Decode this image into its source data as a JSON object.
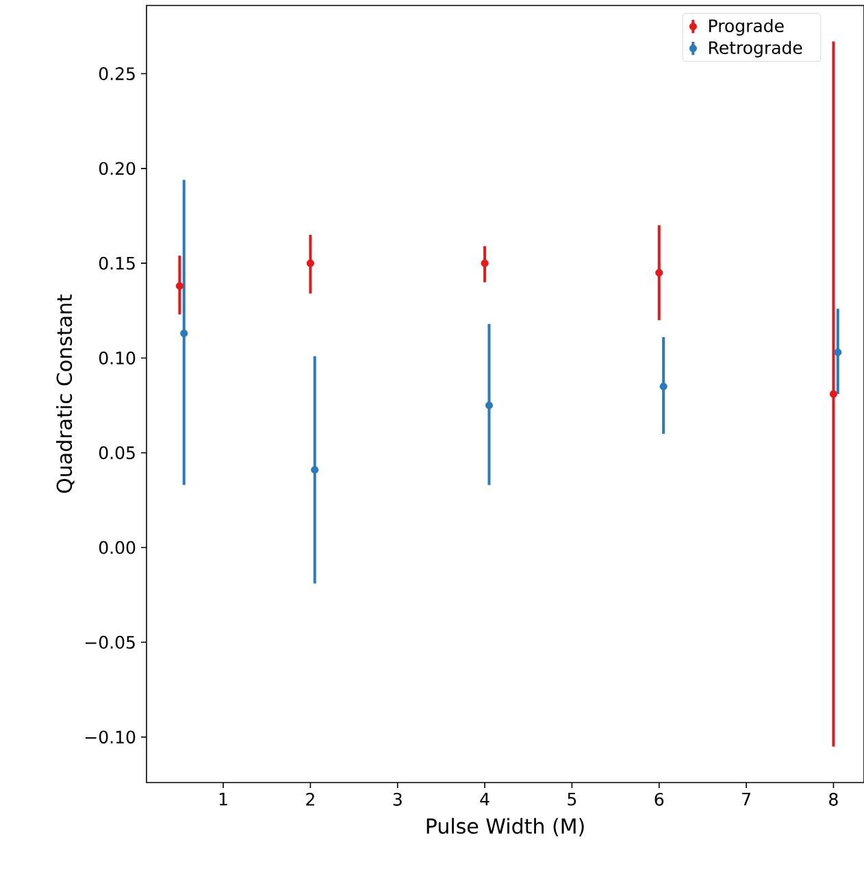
{
  "chart_data": {
    "type": "scatter",
    "xlabel": "Pulse Width (M)",
    "ylabel": "Quadratic Constant",
    "marker": "circle",
    "legend": "top right",
    "xlim": [
      0.12,
      8.35
    ],
    "ylim": [
      -0.124,
      0.286
    ],
    "xticks": [
      1,
      2,
      3,
      4,
      5,
      6,
      7,
      8
    ],
    "yticks": [
      {
        "value": -0.1,
        "label": "−0.10"
      },
      {
        "value": -0.05,
        "label": "−0.05"
      },
      {
        "value": 0,
        "label": "0.00"
      },
      {
        "value": 0.05,
        "label": "0.05"
      },
      {
        "value": 0.1,
        "label": "0.10"
      },
      {
        "value": 0.15,
        "label": "0.15"
      },
      {
        "value": 0.2,
        "label": "0.20"
      },
      {
        "value": 0.25,
        "label": "0.25"
      }
    ],
    "series": [
      {
        "name": "Prograde",
        "color": "#e31a1c",
        "x": [
          0.5,
          2,
          4,
          6,
          8
        ],
        "values": [
          0.138,
          0.15,
          0.15,
          0.145,
          0.081
        ],
        "errors": [
          [
            0.123,
            0.154
          ],
          [
            0.134,
            0.165
          ],
          [
            0.14,
            0.159
          ],
          [
            0.12,
            0.17
          ],
          [
            -0.105,
            0.267
          ]
        ]
      },
      {
        "name": "Retrograde",
        "color": "#2b7bba",
        "x": [
          0.55,
          2.05,
          4.05,
          6.05,
          8.05
        ],
        "values": [
          0.113,
          0.041,
          0.075,
          0.085,
          0.103
        ],
        "errors": [
          [
            0.033,
            0.194
          ],
          [
            -0.019,
            0.101
          ],
          [
            0.033,
            0.118
          ],
          [
            0.06,
            0.111
          ],
          [
            0.081,
            0.126
          ]
        ]
      }
    ]
  }
}
